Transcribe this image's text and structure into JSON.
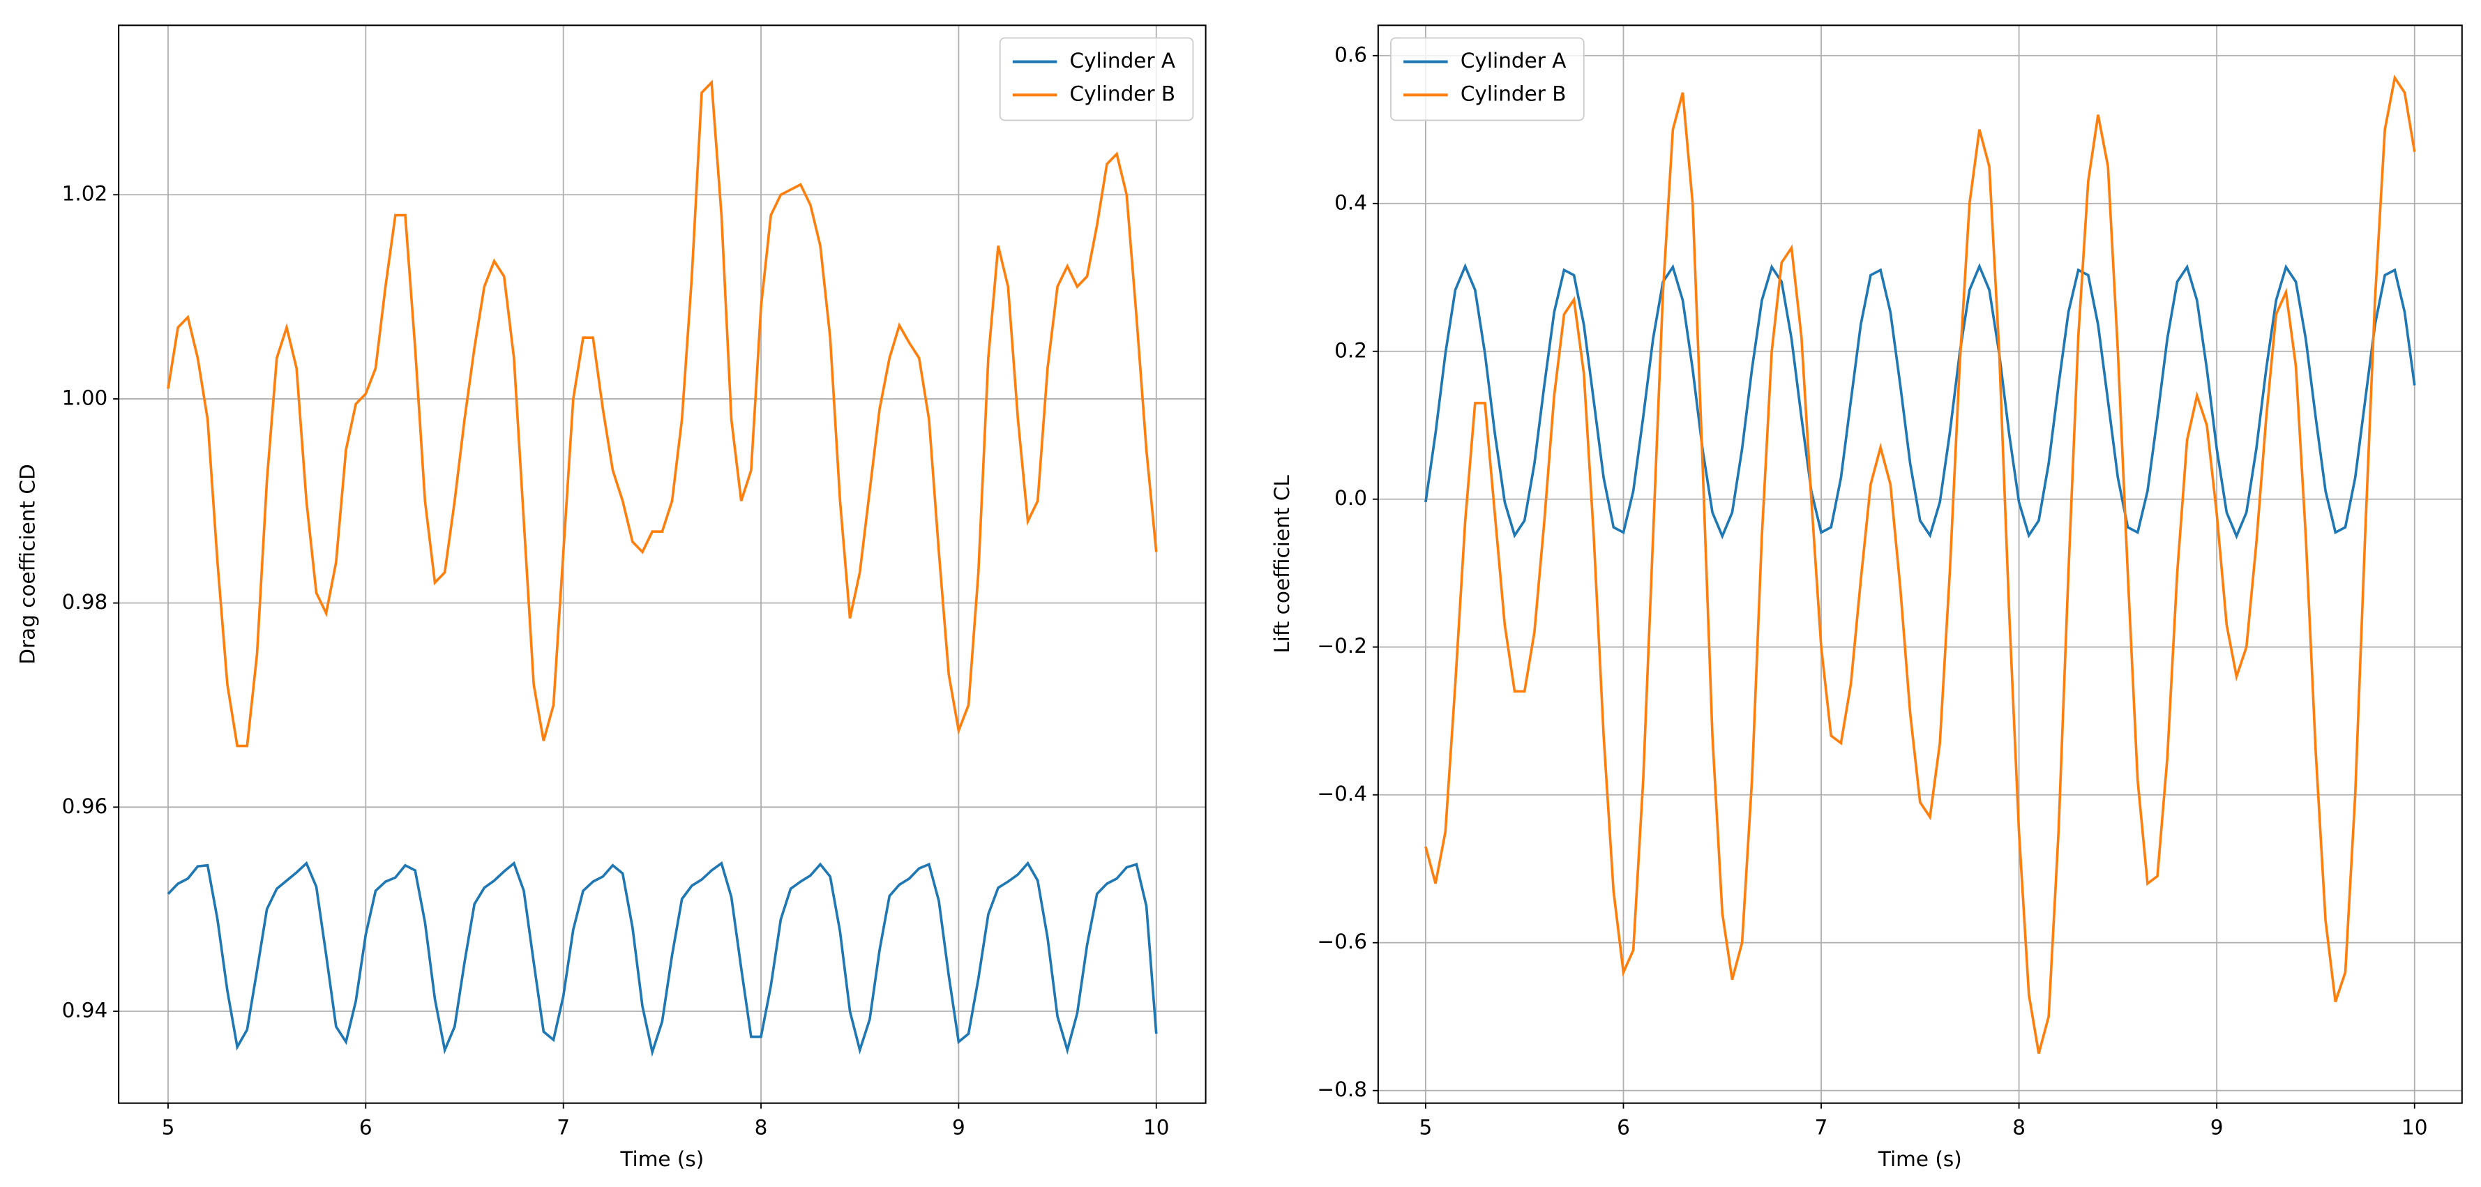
{
  "chart_data": [
    {
      "type": "line",
      "xlabel": "Time (s)",
      "ylabel": "Drag coefficient CD",
      "grid": true,
      "legend": "upper right",
      "xlim": [
        4.75,
        10.25
      ],
      "ylim": [
        0.931,
        1.0366
      ],
      "xticks": [
        5,
        6,
        7,
        8,
        9,
        10
      ],
      "yticks": [
        0.94,
        0.96,
        0.98,
        {
          "value": 1,
          "label": "1.00"
        },
        1.02
      ],
      "x": [
        5,
        5.05,
        5.1,
        5.15,
        5.2,
        5.25,
        5.3,
        5.35,
        5.4,
        5.45,
        5.5,
        5.55,
        5.6,
        5.65,
        5.7,
        5.75,
        5.8,
        5.85,
        5.9,
        5.95,
        6,
        6.05,
        6.1,
        6.15,
        6.2,
        6.25,
        6.3,
        6.35,
        6.4,
        6.45,
        6.5,
        6.55,
        6.6,
        6.65,
        6.7,
        6.75,
        6.8,
        6.85,
        6.9,
        6.95,
        7,
        7.05,
        7.1,
        7.15,
        7.2,
        7.25,
        7.3,
        7.35,
        7.4,
        7.45,
        7.5,
        7.55,
        7.6,
        7.65,
        7.7,
        7.75,
        7.8,
        7.85,
        7.9,
        7.95,
        8,
        8.05,
        8.1,
        8.15,
        8.2,
        8.25,
        8.3,
        8.35,
        8.4,
        8.45,
        8.5,
        8.55,
        8.6,
        8.65,
        8.7,
        8.75,
        8.8,
        8.85,
        8.9,
        8.95,
        9,
        9.05,
        9.1,
        9.15,
        9.2,
        9.25,
        9.3,
        9.35,
        9.4,
        9.45,
        9.5,
        9.55,
        9.6,
        9.65,
        9.7,
        9.75,
        9.8,
        9.85,
        9.9,
        9.95,
        10
      ],
      "series": [
        {
          "name": "Cylinder A",
          "color": "#1f77b4",
          "values": [
            0.9515,
            0.9525,
            0.953,
            0.9542,
            0.9543,
            0.949,
            0.942,
            0.9365,
            0.9382,
            0.944,
            0.95,
            0.952,
            0.9528,
            0.9536,
            0.9545,
            0.9522,
            0.9455,
            0.9385,
            0.937,
            0.941,
            0.9475,
            0.9518,
            0.9527,
            0.9531,
            0.9543,
            0.9538,
            0.9487,
            0.9412,
            0.9362,
            0.9385,
            0.9448,
            0.9505,
            0.9521,
            0.9528,
            0.9537,
            0.9545,
            0.9518,
            0.9448,
            0.938,
            0.9372,
            0.9415,
            0.948,
            0.9518,
            0.9527,
            0.9532,
            0.9543,
            0.9535,
            0.9482,
            0.9405,
            0.936,
            0.939,
            0.9455,
            0.951,
            0.9523,
            0.9529,
            0.9538,
            0.9545,
            0.9512,
            0.9442,
            0.9375,
            0.9375,
            0.9425,
            0.949,
            0.952,
            0.9527,
            0.9533,
            0.9544,
            0.9532,
            0.9478,
            0.94,
            0.9362,
            0.9392,
            0.946,
            0.9513,
            0.9524,
            0.953,
            0.954,
            0.9544,
            0.9508,
            0.9435,
            0.937,
            0.9378,
            0.9432,
            0.9495,
            0.9521,
            0.9527,
            0.9534,
            0.9545,
            0.9528,
            0.9472,
            0.9395,
            0.9362,
            0.9398,
            0.9465,
            0.9515,
            0.9525,
            0.953,
            0.9541,
            0.9544,
            0.9503,
            0.9378
          ]
        },
        {
          "name": "Cylinder B",
          "color": "#ff7f0e",
          "values": [
            1.001,
            1.007,
            1.008,
            1.004,
            0.998,
            0.984,
            0.972,
            0.966,
            0.966,
            0.975,
            0.992,
            1.004,
            1.007,
            1.003,
            0.99,
            0.981,
            0.979,
            0.984,
            0.995,
            0.9995,
            1.0005,
            1.003,
            1.011,
            1.018,
            1.018,
            1.005,
            0.99,
            0.982,
            0.983,
            0.99,
            0.998,
            1.005,
            1.011,
            1.0135,
            1.012,
            1.004,
            0.988,
            0.972,
            0.9665,
            0.97,
            0.985,
            1.0,
            1.006,
            1.006,
            0.999,
            0.993,
            0.99,
            0.986,
            0.985,
            0.987,
            0.987,
            0.99,
            0.998,
            1.012,
            1.03,
            1.031,
            1.018,
            0.998,
            0.99,
            0.993,
            1.009,
            1.018,
            1.02,
            1.0205,
            1.021,
            1.019,
            1.015,
            1.006,
            0.99,
            0.9785,
            0.983,
            0.991,
            0.999,
            1.004,
            1.0072,
            1.0055,
            1.004,
            0.998,
            0.985,
            0.973,
            0.9675,
            0.97,
            0.983,
            1.004,
            1.015,
            1.011,
            0.998,
            0.988,
            0.99,
            1.003,
            1.011,
            1.013,
            1.011,
            1.012,
            1.017,
            1.023,
            1.024,
            1.02,
            1.008,
            0.995,
            0.985
          ]
        }
      ]
    },
    {
      "type": "line",
      "xlabel": "Time (s)",
      "ylabel": "Lift coefficient CL",
      "grid": true,
      "legend": "upper left",
      "xlim": [
        4.76,
        10.24
      ],
      "ylim": [
        -0.817,
        0.641
      ],
      "xticks": [
        5,
        6,
        7,
        8,
        9,
        10
      ],
      "yticks": [
        {
          "value": -0.8,
          "label": "−0.8"
        },
        {
          "value": -0.6,
          "label": "−0.6"
        },
        {
          "value": -0.4,
          "label": "−0.4"
        },
        {
          "value": -0.2,
          "label": "−0.2"
        },
        {
          "value": 0,
          "label": "0.0"
        },
        0.2,
        0.4,
        0.6
      ],
      "x": [
        5,
        5.05,
        5.1,
        5.15,
        5.2,
        5.25,
        5.3,
        5.35,
        5.4,
        5.45,
        5.5,
        5.55,
        5.6,
        5.65,
        5.7,
        5.75,
        5.8,
        5.85,
        5.9,
        5.95,
        6,
        6.05,
        6.1,
        6.15,
        6.2,
        6.25,
        6.3,
        6.35,
        6.4,
        6.45,
        6.5,
        6.55,
        6.6,
        6.65,
        6.7,
        6.75,
        6.8,
        6.85,
        6.9,
        6.95,
        7,
        7.05,
        7.1,
        7.15,
        7.2,
        7.25,
        7.3,
        7.35,
        7.4,
        7.45,
        7.5,
        7.55,
        7.6,
        7.65,
        7.7,
        7.75,
        7.8,
        7.85,
        7.9,
        7.95,
        8,
        8.05,
        8.1,
        8.15,
        8.2,
        8.25,
        8.3,
        8.35,
        8.4,
        8.45,
        8.5,
        8.55,
        8.6,
        8.65,
        8.7,
        8.75,
        8.8,
        8.85,
        8.9,
        8.95,
        9,
        9.05,
        9.1,
        9.15,
        9.2,
        9.25,
        9.3,
        9.35,
        9.4,
        9.45,
        9.5,
        9.55,
        9.6,
        9.65,
        9.7,
        9.75,
        9.8,
        9.85,
        9.9,
        9.95,
        10
      ],
      "series": [
        {
          "name": "Cylinder A",
          "color": "#1f77b4",
          "values": [
            -0.004,
            0.089,
            0.197,
            0.283,
            0.315,
            0.283,
            0.197,
            0.089,
            -0.004,
            -0.049,
            -0.029,
            0.048,
            0.154,
            0.253,
            0.31,
            0.303,
            0.236,
            0.133,
            0.029,
            -0.038,
            -0.045,
            0.011,
            0.111,
            0.217,
            0.294,
            0.314,
            0.269,
            0.176,
            0.068,
            -0.018,
            -0.05,
            -0.018,
            0.068,
            0.176,
            0.269,
            0.314,
            0.294,
            0.217,
            0.111,
            0.011,
            -0.045,
            -0.038,
            0.029,
            0.133,
            0.236,
            0.303,
            0.31,
            0.253,
            0.154,
            0.048,
            -0.029,
            -0.049,
            -0.004,
            0.089,
            0.197,
            0.283,
            0.315,
            0.283,
            0.197,
            0.089,
            -0.004,
            -0.049,
            -0.029,
            0.048,
            0.154,
            0.253,
            0.31,
            0.303,
            0.236,
            0.133,
            0.029,
            -0.038,
            -0.045,
            0.011,
            0.111,
            0.217,
            0.294,
            0.314,
            0.269,
            0.176,
            0.068,
            -0.018,
            -0.05,
            -0.018,
            0.068,
            0.176,
            0.269,
            0.314,
            0.294,
            0.217,
            0.111,
            0.011,
            -0.045,
            -0.038,
            0.029,
            0.133,
            0.236,
            0.303,
            0.31,
            0.253,
            0.154
          ]
        },
        {
          "name": "Cylinder B",
          "color": "#ff7f0e",
          "values": [
            -0.47,
            -0.52,
            -0.45,
            -0.25,
            -0.03,
            0.13,
            0.13,
            -0.02,
            -0.17,
            -0.26,
            -0.26,
            -0.18,
            -0.03,
            0.14,
            0.25,
            0.27,
            0.17,
            -0.05,
            -0.32,
            -0.53,
            -0.64,
            -0.61,
            -0.38,
            -0.05,
            0.28,
            0.5,
            0.55,
            0.4,
            0.05,
            -0.32,
            -0.56,
            -0.65,
            -0.6,
            -0.38,
            -0.05,
            0.2,
            0.32,
            0.34,
            0.22,
            0.0,
            -0.2,
            -0.32,
            -0.33,
            -0.25,
            -0.11,
            0.02,
            0.07,
            0.02,
            -0.12,
            -0.29,
            -0.41,
            -0.43,
            -0.33,
            -0.1,
            0.18,
            0.4,
            0.5,
            0.45,
            0.2,
            -0.15,
            -0.45,
            -0.67,
            -0.75,
            -0.7,
            -0.45,
            -0.1,
            0.22,
            0.43,
            0.52,
            0.45,
            0.2,
            -0.1,
            -0.38,
            -0.52,
            -0.51,
            -0.35,
            -0.1,
            0.08,
            0.14,
            0.1,
            -0.02,
            -0.17,
            -0.24,
            -0.2,
            -0.06,
            0.11,
            0.25,
            0.28,
            0.18,
            -0.05,
            -0.34,
            -0.57,
            -0.68,
            -0.64,
            -0.4,
            -0.05,
            0.27,
            0.5,
            0.57,
            0.55,
            0.47
          ]
        }
      ]
    }
  ]
}
